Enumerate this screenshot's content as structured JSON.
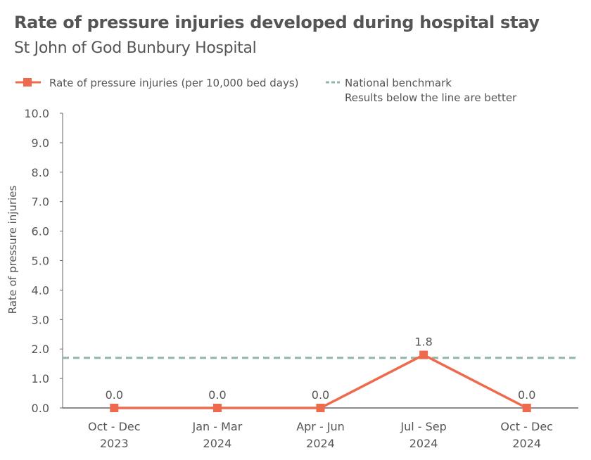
{
  "chart_data": {
    "type": "line",
    "title": "Rate of pressure injuries developed during hospital stay",
    "subtitle": "St John of God Bunbury Hospital",
    "ylabel": "Rate of pressure injuries",
    "xlabel": "",
    "ylim": [
      0,
      10
    ],
    "yticks": [
      "0.0",
      "1.0",
      "2.0",
      "3.0",
      "4.0",
      "5.0",
      "6.0",
      "7.0",
      "8.0",
      "9.0",
      "10.0"
    ],
    "categories": [
      [
        "Oct - Dec",
        "2023"
      ],
      [
        "Jan - Mar",
        "2024"
      ],
      [
        "Apr - Jun",
        "2024"
      ],
      [
        "Jul - Sep",
        "2024"
      ],
      [
        "Oct - Dec",
        "2024"
      ]
    ],
    "series": [
      {
        "name": "Rate of pressure injuries (per 10,000 bed days)",
        "values": [
          0.0,
          0.0,
          0.0,
          1.8,
          0.0
        ],
        "labels": [
          "0.0",
          "0.0",
          "0.0",
          "1.8",
          "0.0"
        ],
        "color": "#ef6a4c",
        "marker": "square"
      }
    ],
    "benchmark": {
      "name": "National benchmark",
      "note": "Results below the line are better",
      "value": 1.7,
      "color": "#8fb8a5",
      "style": "dashed"
    },
    "grid": false,
    "legend_position": "top"
  }
}
